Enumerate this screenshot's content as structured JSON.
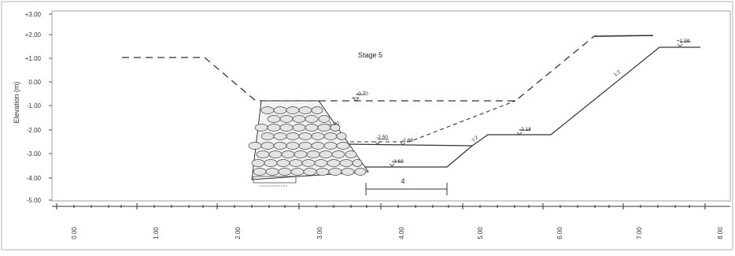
{
  "stage_label": "Stage 5",
  "y_axis_label": "Elevation (m)",
  "y_ticks": [
    "+3.00",
    "+2.00",
    "+1.00",
    "0.00",
    "-1.00",
    "-2.00",
    "-3.00",
    "-4.00",
    "-5.00"
  ],
  "x_ticks": [
    "0.00",
    "1.00",
    "2.00",
    "3.00",
    "4.00",
    "5.00",
    "6.00",
    "7.00",
    "8.00"
  ],
  "elevation_marks": {
    "top_left": "-0.70",
    "wall_right": "-1.00",
    "lower_left": "-2.50",
    "lower_mid": "-2.68",
    "bottom": "-3.63",
    "right_step": "-2.18",
    "top_right": "+1.58"
  },
  "slope_labels": {
    "lower": "1:2",
    "upper": "1:2"
  },
  "dimension_label": "4",
  "colors": {
    "line": "#333333",
    "frame": "#b0b0b0",
    "gabion_fill": "#e9e9e9"
  }
}
